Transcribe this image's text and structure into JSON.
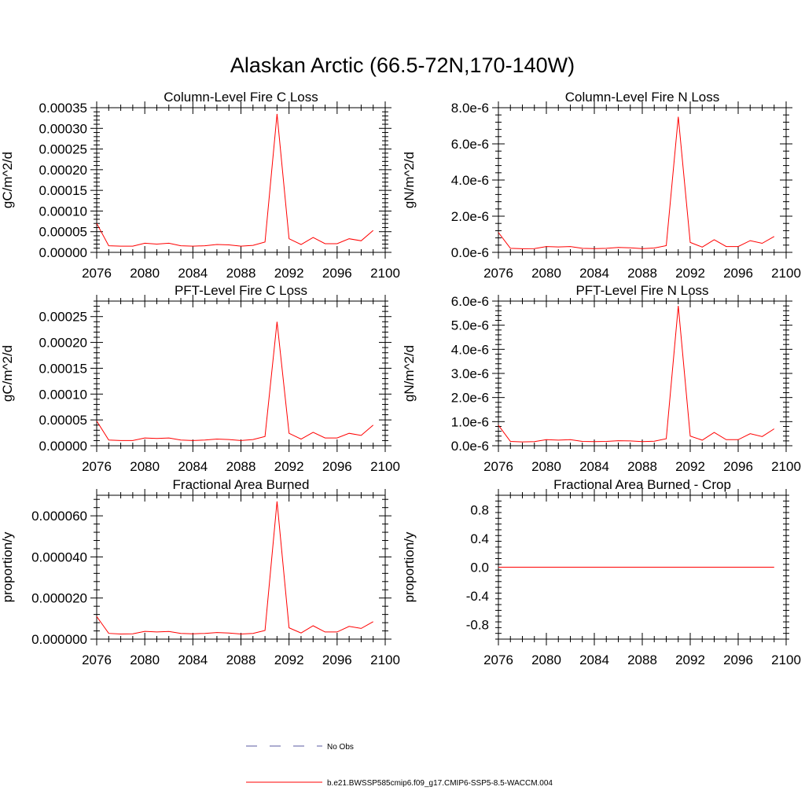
{
  "figure": {
    "title": "Alaskan Arctic (66.5-72N,170-140W)"
  },
  "legend": {
    "entries": [
      {
        "label": "No Obs",
        "color": "#5a5aa0",
        "dash": "dashed"
      },
      {
        "label": "b.e21.BWSSP585cmip6.f09_g17.CMIP6-SSP5-8.5-WACCM.004",
        "color": "#ff0000",
        "dash": "solid"
      }
    ]
  },
  "chart_data": [
    {
      "type": "line",
      "title": "Column-Level Fire C Loss",
      "ylabel": "gC/m^2/d",
      "xlim": [
        2076,
        2100
      ],
      "ylim": [
        0,
        0.00035
      ],
      "xticks": [
        2076,
        2080,
        2084,
        2088,
        2092,
        2096,
        2100
      ],
      "xtick_labels": [
        "2076",
        "2080",
        "2084",
        "2088",
        "2092",
        "2096",
        "2100"
      ],
      "yticks": [
        0,
        5e-05,
        0.0001,
        0.00015,
        0.0002,
        0.00025,
        0.0003,
        0.00035
      ],
      "ytick_labels": [
        "0.00000",
        "0.00005",
        "0.00010",
        "0.00015",
        "0.00020",
        "0.00025",
        "0.00030",
        "0.00035"
      ],
      "grid": false,
      "x": [
        2076,
        2077,
        2078,
        2079,
        2080,
        2081,
        2082,
        2083,
        2084,
        2085,
        2086,
        2087,
        2088,
        2089,
        2090,
        2091,
        2092,
        2093,
        2094,
        2095,
        2096,
        2097,
        2098,
        2099
      ],
      "series": [
        {
          "color": "#ff0000",
          "values": [
            7e-05,
            1.6e-05,
            1.5e-05,
            1.5e-05,
            2.2e-05,
            2e-05,
            2.2e-05,
            1.6e-05,
            1.5e-05,
            1.6e-05,
            1.9e-05,
            1.8e-05,
            1.5e-05,
            1.7e-05,
            2.5e-05,
            0.000335,
            3.3e-05,
            1.9e-05,
            3.6e-05,
            2.1e-05,
            2.1e-05,
            3.3e-05,
            2.8e-05,
            5.3e-05
          ]
        }
      ]
    },
    {
      "type": "line",
      "title": "Column-Level Fire N Loss",
      "ylabel": "gN/m^2/d",
      "xlim": [
        2076,
        2100
      ],
      "ylim": [
        0,
        8e-06
      ],
      "xticks": [
        2076,
        2080,
        2084,
        2088,
        2092,
        2096,
        2100
      ],
      "xtick_labels": [
        "2076",
        "2080",
        "2084",
        "2088",
        "2092",
        "2096",
        "2100"
      ],
      "yticks": [
        0,
        2e-06,
        4e-06,
        6e-06,
        8e-06
      ],
      "ytick_labels": [
        "0.0e-6",
        "2.0e-6",
        "4.0e-6",
        "6.0e-6",
        "8.0e-6"
      ],
      "grid": false,
      "x": [
        2076,
        2077,
        2078,
        2079,
        2080,
        2081,
        2082,
        2083,
        2084,
        2085,
        2086,
        2087,
        2088,
        2089,
        2090,
        2091,
        2092,
        2093,
        2094,
        2095,
        2096,
        2097,
        2098,
        2099
      ],
      "series": [
        {
          "color": "#ff0000",
          "values": [
            1.1e-06,
            2.2e-07,
            2e-07,
            2.1e-07,
            3.2e-07,
            3e-07,
            3.2e-07,
            2.2e-07,
            2.1e-07,
            2.2e-07,
            2.7e-07,
            2.5e-07,
            2.1e-07,
            2.4e-07,
            3.7e-07,
            7.5e-06,
            5.5e-07,
            2.9e-07,
            7e-07,
            3.2e-07,
            3.2e-07,
            6.5e-07,
            5e-07,
            8.8e-07
          ]
        }
      ]
    },
    {
      "type": "line",
      "title": "PFT-Level Fire C Loss",
      "ylabel": "gC/m^2/d",
      "xlim": [
        2076,
        2100
      ],
      "ylim": [
        0,
        0.00028
      ],
      "xticks": [
        2076,
        2080,
        2084,
        2088,
        2092,
        2096,
        2100
      ],
      "xtick_labels": [
        "2076",
        "2080",
        "2084",
        "2088",
        "2092",
        "2096",
        "2100"
      ],
      "yticks": [
        0,
        5e-05,
        0.0001,
        0.00015,
        0.0002,
        0.00025
      ],
      "ytick_labels": [
        "0.00000",
        "0.00005",
        "0.00010",
        "0.00015",
        "0.00020",
        "0.00025"
      ],
      "grid": false,
      "x": [
        2076,
        2077,
        2078,
        2079,
        2080,
        2081,
        2082,
        2083,
        2084,
        2085,
        2086,
        2087,
        2088,
        2089,
        2090,
        2091,
        2092,
        2093,
        2094,
        2095,
        2096,
        2097,
        2098,
        2099
      ],
      "series": [
        {
          "color": "#ff0000",
          "values": [
            4.8e-05,
            1.1e-05,
            1e-05,
            1e-05,
            1.5e-05,
            1.4e-05,
            1.5e-05,
            1.1e-05,
            1e-05,
            1.1e-05,
            1.3e-05,
            1.2e-05,
            1e-05,
            1.2e-05,
            1.8e-05,
            0.00024,
            2.4e-05,
            1.3e-05,
            2.6e-05,
            1.5e-05,
            1.5e-05,
            2.4e-05,
            2e-05,
            4e-05
          ]
        }
      ]
    },
    {
      "type": "line",
      "title": "PFT-Level Fire N Loss",
      "ylabel": "gN/m^2/d",
      "xlim": [
        2076,
        2100
      ],
      "ylim": [
        0,
        6e-06
      ],
      "xticks": [
        2076,
        2080,
        2084,
        2088,
        2092,
        2096,
        2100
      ],
      "xtick_labels": [
        "2076",
        "2080",
        "2084",
        "2088",
        "2092",
        "2096",
        "2100"
      ],
      "yticks": [
        0,
        1e-06,
        2e-06,
        3e-06,
        4e-06,
        5e-06,
        6e-06
      ],
      "ytick_labels": [
        "0.0e-6",
        "1.0e-6",
        "2.0e-6",
        "3.0e-6",
        "4.0e-6",
        "5.0e-6",
        "6.0e-6"
      ],
      "grid": false,
      "x": [
        2076,
        2077,
        2078,
        2079,
        2080,
        2081,
        2082,
        2083,
        2084,
        2085,
        2086,
        2087,
        2088,
        2089,
        2090,
        2091,
        2092,
        2093,
        2094,
        2095,
        2096,
        2097,
        2098,
        2099
      ],
      "series": [
        {
          "color": "#ff0000",
          "values": [
            8.5e-07,
            1.8e-07,
            1.6e-07,
            1.7e-07,
            2.5e-07,
            2.3e-07,
            2.5e-07,
            1.8e-07,
            1.7e-07,
            1.8e-07,
            2.1e-07,
            2e-07,
            1.7e-07,
            1.9e-07,
            2.9e-07,
            5.8e-06,
            4e-07,
            2.3e-07,
            5.5e-07,
            2.5e-07,
            2.5e-07,
            5e-07,
            3.8e-07,
            7e-07
          ]
        }
      ]
    },
    {
      "type": "line",
      "title": "Fractional Area Burned",
      "ylabel": "proportion/y",
      "xlim": [
        2076,
        2100
      ],
      "ylim": [
        0,
        7e-05
      ],
      "xticks": [
        2076,
        2080,
        2084,
        2088,
        2092,
        2096,
        2100
      ],
      "xtick_labels": [
        "2076",
        "2080",
        "2084",
        "2088",
        "2092",
        "2096",
        "2100"
      ],
      "yticks": [
        0,
        2e-05,
        4e-05,
        6e-05
      ],
      "ytick_labels": [
        "0.000000",
        "0.000020",
        "0.000040",
        "0.000060"
      ],
      "grid": false,
      "x": [
        2076,
        2077,
        2078,
        2079,
        2080,
        2081,
        2082,
        2083,
        2084,
        2085,
        2086,
        2087,
        2088,
        2089,
        2090,
        2091,
        2092,
        2093,
        2094,
        2095,
        2096,
        2097,
        2098,
        2099
      ],
      "series": [
        {
          "color": "#ff0000",
          "values": [
            1.1e-05,
            2.8e-06,
            2.5e-06,
            2.6e-06,
            3.8e-06,
            3.5e-06,
            3.7e-06,
            2.8e-06,
            2.6e-06,
            2.8e-06,
            3.2e-06,
            3e-06,
            2.5e-06,
            2.8e-06,
            4.2e-06,
            6.7e-05,
            5.5e-06,
            3e-06,
            6.5e-06,
            3.5e-06,
            3.5e-06,
            6.2e-06,
            5.2e-06,
            8.5e-06
          ]
        }
      ]
    },
    {
      "type": "line",
      "title": "Fractional Area Burned - Crop",
      "ylabel": "proportion/y",
      "xlim": [
        2076,
        2100
      ],
      "ylim": [
        -1,
        1
      ],
      "xticks": [
        2076,
        2080,
        2084,
        2088,
        2092,
        2096,
        2100
      ],
      "xtick_labels": [
        "2076",
        "2080",
        "2084",
        "2088",
        "2092",
        "2096",
        "2100"
      ],
      "yticks": [
        -0.8,
        -0.4,
        0,
        0.4,
        0.8
      ],
      "ytick_labels": [
        "-0.8",
        "-0.4",
        "0.0",
        "0.4",
        "0.8"
      ],
      "grid": false,
      "x": [
        2076,
        2077,
        2078,
        2079,
        2080,
        2081,
        2082,
        2083,
        2084,
        2085,
        2086,
        2087,
        2088,
        2089,
        2090,
        2091,
        2092,
        2093,
        2094,
        2095,
        2096,
        2097,
        2098,
        2099
      ],
      "series": [
        {
          "color": "#ff0000",
          "values": [
            0,
            0,
            0,
            0,
            0,
            0,
            0,
            0,
            0,
            0,
            0,
            0,
            0,
            0,
            0,
            0,
            0,
            0,
            0,
            0,
            0,
            0,
            0,
            0
          ]
        }
      ]
    }
  ]
}
